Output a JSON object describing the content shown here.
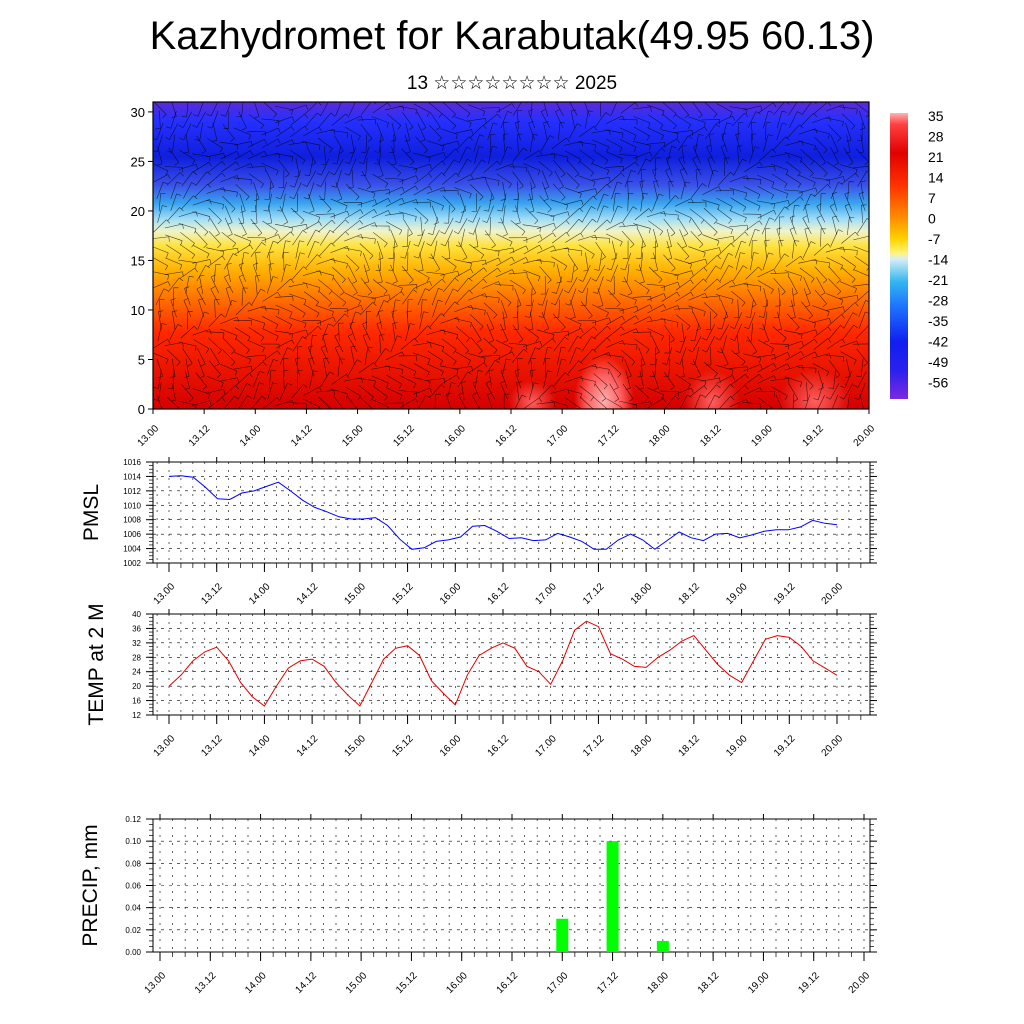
{
  "title": "Kazhydromet for Karabutak(49.95 60.13)",
  "subtitle": "13 ☆☆☆☆☆☆☆☆ 2025",
  "chart_data": [
    {
      "type": "heatmap",
      "name": "temperature-wind-cross-section",
      "x_ticks": [
        "13.00",
        "13.12",
        "14.00",
        "14.12",
        "15.00",
        "15.12",
        "16.00",
        "16.12",
        "17.00",
        "17.12",
        "18.00",
        "18.12",
        "19.00",
        "19.12",
        "20.00"
      ],
      "y_ticks": [
        "0",
        "5",
        "10",
        "15",
        "20",
        "25",
        "30"
      ],
      "ylim": [
        0,
        31
      ],
      "colorbar_labels": [
        "35",
        "28",
        "21",
        "14",
        "7",
        "0",
        "-7",
        "-14",
        "-21",
        "-28",
        "-35",
        "-42",
        "-49",
        "-56"
      ],
      "colors": {
        "hot": "#ff4b4b",
        "warm": "#ff3000",
        "orange": "#ff9a00",
        "yellow": "#ffe13c",
        "pale": "#f3f6c8",
        "lightblue": "#78cdf2",
        "blue": "#0f3cff",
        "violet": "#7b2ae0"
      }
    },
    {
      "type": "line",
      "ylabel": "PMSL",
      "x_ticks": [
        "13.00",
        "13.12",
        "14.00",
        "14.12",
        "15.00",
        "15.12",
        "16.00",
        "16.12",
        "17.00",
        "17.12",
        "18.00",
        "18.12",
        "19.00",
        "19.12",
        "20.00"
      ],
      "y_ticks": [
        "1002",
        "1004",
        "1006",
        "1008",
        "1010",
        "1012",
        "1014",
        "1016"
      ],
      "ylim": [
        1002,
        1016
      ],
      "color": "#0000ff",
      "values": [
        1014,
        1014.1,
        1013.9,
        1012.5,
        1010.9,
        1010.8,
        1011.7,
        1012,
        1012.6,
        1013.2,
        1012,
        1010.7,
        1009.7,
        1009.1,
        1008.4,
        1008.1,
        1008.1,
        1008.3,
        1007.2,
        1005.3,
        1003.9,
        1004.1,
        1005,
        1005.2,
        1005.6,
        1007.1,
        1007.2,
        1006.4,
        1005.4,
        1005.5,
        1005.1,
        1005.2,
        1006.1,
        1005.6,
        1005,
        1003.9,
        1003.9,
        1005.2,
        1006,
        1005.2,
        1003.9,
        1005.1,
        1006.3,
        1005.5,
        1005.1,
        1006,
        1006.1,
        1005.5,
        1005.9,
        1006.4,
        1006.6,
        1006.6,
        1007,
        1007.9,
        1007.5,
        1007.3
      ]
    },
    {
      "type": "line",
      "ylabel": "TEMP at 2 M",
      "x_ticks": [
        "13.00",
        "13.12",
        "14.00",
        "14.12",
        "15.00",
        "15.12",
        "16.00",
        "16.12",
        "17.00",
        "17.12",
        "18.00",
        "18.12",
        "19.00",
        "19.12",
        "20.00"
      ],
      "y_ticks": [
        "12",
        "16",
        "20",
        "24",
        "28",
        "32",
        "36",
        "40"
      ],
      "ylim": [
        12,
        40
      ],
      "color": "#e00000",
      "values": [
        20,
        23,
        27,
        29.5,
        30.8,
        27,
        21,
        17,
        14.5,
        20,
        25,
        27,
        27.5,
        25.5,
        21,
        17.5,
        14.5,
        21,
        27.5,
        30.5,
        31.2,
        28.5,
        21.5,
        18,
        14.8,
        23,
        28.5,
        30.5,
        32,
        30.5,
        25.5,
        24,
        20.5,
        27,
        35.5,
        38,
        36.5,
        29,
        27.5,
        25.5,
        25.2,
        28,
        30,
        32.5,
        34,
        30,
        26,
        23,
        21,
        27,
        33,
        34,
        33.5,
        31,
        27,
        25,
        23
      ]
    },
    {
      "type": "bar",
      "ylabel": "PRECIP, mm",
      "x_ticks": [
        "13.00",
        "13.12",
        "14.00",
        "14.12",
        "15.00",
        "15.12",
        "16.00",
        "16.12",
        "17.00",
        "17.12",
        "18.00",
        "18.12",
        "19.00",
        "19.12",
        "20.00"
      ],
      "y_ticks": [
        "0.00",
        "0.02",
        "0.04",
        "0.06",
        "0.08",
        "0.10",
        "0.12"
      ],
      "ylim": [
        0,
        0.12
      ],
      "color": "#00ff00",
      "bars": [
        {
          "x": "17.00",
          "value": 0.03
        },
        {
          "x": "17.12",
          "value": 0.1
        },
        {
          "x": "18.00",
          "value": 0.01
        }
      ]
    }
  ]
}
